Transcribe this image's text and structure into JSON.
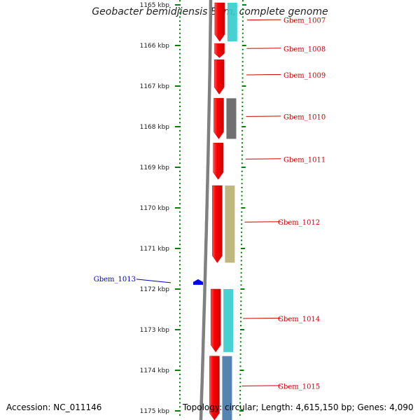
{
  "title": "Geobacter bemidjiensis Bem, complete genome",
  "footer": {
    "accession": "Accession: NC_011146",
    "topology": "Topology: circular; Length: 4,615,150 bp; Genes: 4,090"
  },
  "scale": {
    "unit": "kbp",
    "ticks": [
      {
        "kbp": 1165,
        "label": "1165 kbp"
      },
      {
        "kbp": 1166,
        "label": "1166 kbp"
      },
      {
        "kbp": 1167,
        "label": "1167 kbp"
      },
      {
        "kbp": 1168,
        "label": "1168 kbp"
      },
      {
        "kbp": 1169,
        "label": "1169 kbp"
      },
      {
        "kbp": 1170,
        "label": "1170 kbp"
      },
      {
        "kbp": 1171,
        "label": "1171 kbp"
      },
      {
        "kbp": 1172,
        "label": "1172 kbp"
      },
      {
        "kbp": 1173,
        "label": "1173 kbp"
      },
      {
        "kbp": 1174,
        "label": "1174 kbp"
      },
      {
        "kbp": 1175,
        "label": "1175 kbp"
      }
    ]
  },
  "colors": {
    "forward_gene": "#ff0000",
    "reverse_gene": "#0000ff",
    "forward_label": "#cc0000",
    "reverse_label": "#0000cc",
    "backbone": "#808080",
    "tick": "#008000"
  },
  "genes": [
    {
      "name": "Gbem_1007",
      "start_kbp": 1164.9,
      "end_kbp": 1165.9,
      "strand": "+",
      "cog_color": "#33cccc"
    },
    {
      "name": "Gbem_1008",
      "start_kbp": 1165.95,
      "end_kbp": 1166.3,
      "strand": "+",
      "cog_color": null
    },
    {
      "name": "Gbem_1009",
      "start_kbp": 1166.35,
      "end_kbp": 1167.2,
      "strand": "+",
      "cog_color": null
    },
    {
      "name": "Gbem_1010",
      "start_kbp": 1167.3,
      "end_kbp": 1168.3,
      "strand": "+",
      "cog_color": "#606060"
    },
    {
      "name": "Gbem_1011",
      "start_kbp": 1168.4,
      "end_kbp": 1169.3,
      "strand": "+",
      "cog_color": null
    },
    {
      "name": "Gbem_1012",
      "start_kbp": 1169.45,
      "end_kbp": 1171.35,
      "strand": "+",
      "cog_color": "#b8b070"
    },
    {
      "name": "Gbem_1013",
      "start_kbp": 1171.75,
      "end_kbp": 1171.9,
      "strand": "-",
      "cog_color": null
    },
    {
      "name": "Gbem_1014",
      "start_kbp": 1172.0,
      "end_kbp": 1173.55,
      "strand": "+",
      "cog_color": "#33cccc"
    },
    {
      "name": "Gbem_1015",
      "start_kbp": 1173.65,
      "end_kbp": 1175.3,
      "strand": "+",
      "cog_color": "#4477aa"
    }
  ]
}
